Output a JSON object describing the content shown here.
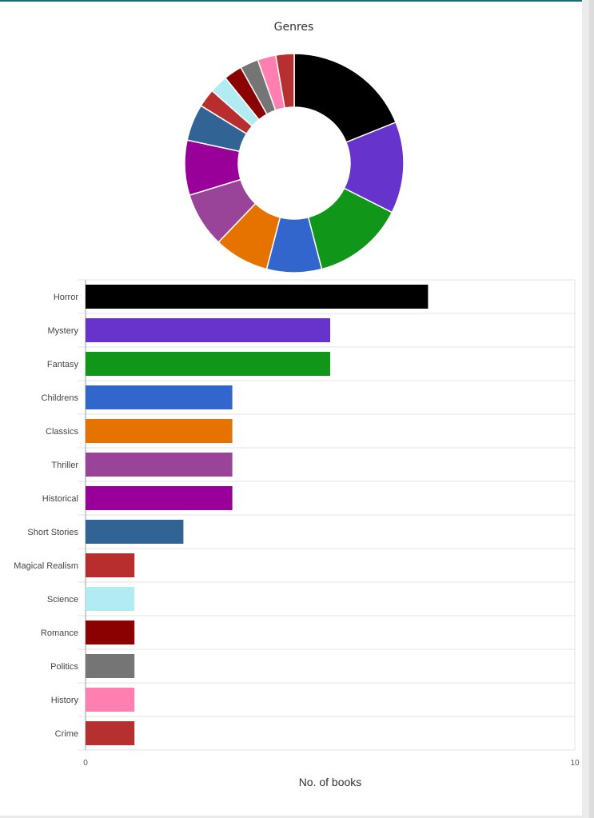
{
  "chart_data": [
    {
      "type": "pie",
      "title": "Genres",
      "categories": [
        "Horror",
        "Mystery",
        "Fantasy",
        "Childrens",
        "Classics",
        "Thriller",
        "Historical",
        "Short Stories",
        "Magical Realism",
        "Science",
        "Romance",
        "Politics",
        "History",
        "Crime"
      ],
      "values": [
        7,
        5,
        5,
        3,
        3,
        3,
        3,
        2,
        1,
        1,
        1,
        1,
        1,
        1
      ],
      "colors": [
        "#000000",
        "#6633cc",
        "#109618",
        "#3366cc",
        "#e67300",
        "#994499",
        "#990099",
        "#316395",
        "#b82e2e",
        "#b2ebf2",
        "#8b0000",
        "#757575",
        "#ff7fb0",
        "#b5302f"
      ]
    },
    {
      "type": "bar",
      "orientation": "horizontal",
      "categories": [
        "Horror",
        "Mystery",
        "Fantasy",
        "Childrens",
        "Classics",
        "Thriller",
        "Historical",
        "Short Stories",
        "Magical Realism",
        "Science",
        "Romance",
        "Politics",
        "History",
        "Crime"
      ],
      "values": [
        7,
        5,
        5,
        3,
        3,
        3,
        3,
        2,
        1,
        1,
        1,
        1,
        1,
        1
      ],
      "colors": [
        "#000000",
        "#6633cc",
        "#109618",
        "#3366cc",
        "#e67300",
        "#994499",
        "#990099",
        "#316395",
        "#b82e2e",
        "#b2ebf2",
        "#8b0000",
        "#757575",
        "#ff7fb0",
        "#b5302f"
      ],
      "xlabel": "No. of books",
      "xlim": [
        0,
        10
      ],
      "xticks": [
        "0",
        "10"
      ]
    }
  ]
}
